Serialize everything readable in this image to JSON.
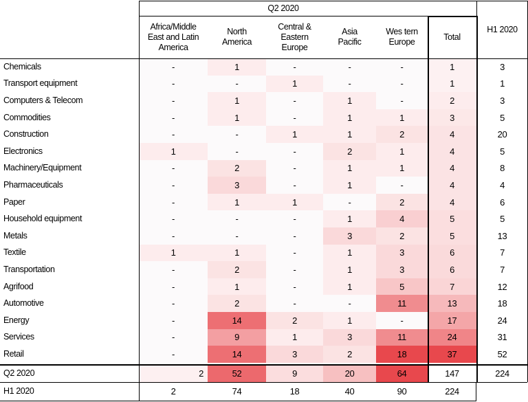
{
  "chart_data": {
    "type": "table",
    "group_header": "Q2 2020",
    "columns": [
      "Africa/Middle East and Latin America",
      "North America",
      "Central & Eastern Europe",
      "Asia Pacific",
      "Western Europe",
      "Total",
      "H1 2020"
    ],
    "column_labels": [
      "Africa/Middle\nEast and Latin\nAmerica",
      "North\nAmerica",
      "Central &\nEastern\nEurope",
      "Asia\nPacific",
      "Wes tern\nEurope",
      "Total",
      "H1 2020"
    ],
    "rows": [
      {
        "label": "Chemicals",
        "values": [
          "-",
          "1",
          "-",
          "-",
          "-",
          "1",
          "3"
        ]
      },
      {
        "label": "Transport equipment",
        "values": [
          "-",
          "-",
          "1",
          "-",
          "-",
          "1",
          "1"
        ]
      },
      {
        "label": "Computers & Telecom",
        "values": [
          "-",
          "1",
          "-",
          "1",
          "-",
          "2",
          "3"
        ]
      },
      {
        "label": "Commodities",
        "values": [
          "-",
          "1",
          "-",
          "1",
          "1",
          "3",
          "5"
        ]
      },
      {
        "label": "Construction",
        "values": [
          "-",
          "-",
          "1",
          "1",
          "2",
          "4",
          "20"
        ]
      },
      {
        "label": "Electronics",
        "values": [
          "1",
          "-",
          "-",
          "2",
          "1",
          "4",
          "5"
        ]
      },
      {
        "label": "Machinery/Equipment",
        "values": [
          "-",
          "2",
          "-",
          "1",
          "1",
          "4",
          "8"
        ]
      },
      {
        "label": "Pharmaceuticals",
        "values": [
          "-",
          "3",
          "-",
          "1",
          "-",
          "4",
          "4"
        ]
      },
      {
        "label": "Paper",
        "values": [
          "-",
          "1",
          "1",
          "-",
          "2",
          "4",
          "6"
        ]
      },
      {
        "label": "Household equipment",
        "values": [
          "-",
          "-",
          "-",
          "1",
          "4",
          "5",
          "5"
        ]
      },
      {
        "label": "Metals",
        "values": [
          "-",
          "-",
          "-",
          "3",
          "2",
          "5",
          "13"
        ]
      },
      {
        "label": "Textile",
        "values": [
          "1",
          "1",
          "-",
          "1",
          "3",
          "6",
          "7"
        ]
      },
      {
        "label": "Transportation",
        "values": [
          "-",
          "2",
          "-",
          "1",
          "3",
          "6",
          "7"
        ]
      },
      {
        "label": "Agrifood",
        "values": [
          "-",
          "1",
          "-",
          "1",
          "5",
          "7",
          "12"
        ]
      },
      {
        "label": "Automotive",
        "values": [
          "-",
          "2",
          "-",
          "-",
          "11",
          "13",
          "18"
        ]
      },
      {
        "label": "Energy",
        "values": [
          "-",
          "14",
          "2",
          "1",
          "-",
          "17",
          "24"
        ]
      },
      {
        "label": "Services",
        "values": [
          "-",
          "9",
          "1",
          "3",
          "11",
          "24",
          "31"
        ]
      },
      {
        "label": "Retail",
        "values": [
          "-",
          "14",
          "3",
          "2",
          "18",
          "37",
          "52"
        ]
      }
    ],
    "total_rows": [
      {
        "label": "Q2 2020",
        "values": [
          "2",
          "52",
          "9",
          "20",
          "64",
          "147",
          "224"
        ]
      },
      {
        "label": "H1 2020",
        "values": [
          "2",
          "74",
          "18",
          "40",
          "90",
          "224",
          ""
        ]
      }
    ],
    "heat_color": "#e8484d"
  }
}
